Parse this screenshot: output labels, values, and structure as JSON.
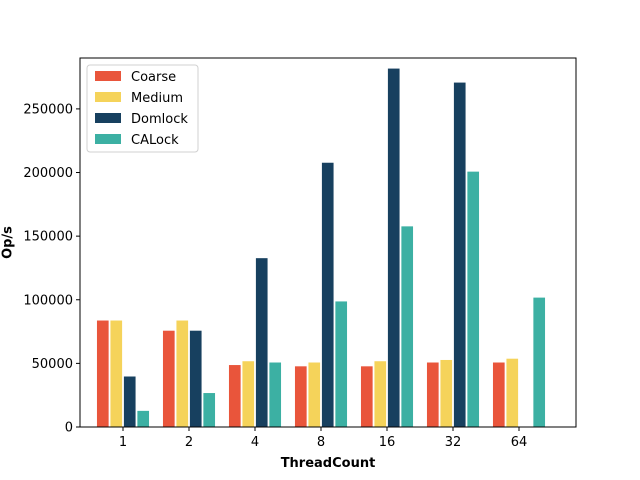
{
  "chart_data": {
    "type": "bar",
    "title": "",
    "xlabel": "ThreadCount",
    "ylabel": "Op/s",
    "categories": [
      "1",
      "2",
      "4",
      "8",
      "16",
      "32",
      "64"
    ],
    "ylim": [
      0,
      290000
    ],
    "yticks": [
      0,
      50000,
      100000,
      150000,
      200000,
      250000
    ],
    "ytick_labels": [
      "0",
      "50000",
      "100000",
      "150000",
      "200000",
      "250000"
    ],
    "legend": "top-left",
    "grid": false,
    "series": [
      {
        "name": "Coarse",
        "color": "#e9553b",
        "values": [
          84000,
          76000,
          49000,
          48000,
          48000,
          51000,
          51000
        ]
      },
      {
        "name": "Medium",
        "color": "#f5d35a",
        "values": [
          84000,
          84000,
          52000,
          51000,
          52000,
          53000,
          54000
        ]
      },
      {
        "name": "Domlock",
        "color": "#17405f",
        "values": [
          40000,
          76000,
          133000,
          208000,
          282000,
          271000,
          0
        ]
      },
      {
        "name": "CALock",
        "color": "#3cb0a3",
        "values": [
          13000,
          27000,
          51000,
          99000,
          158000,
          201000,
          102000
        ]
      }
    ]
  }
}
